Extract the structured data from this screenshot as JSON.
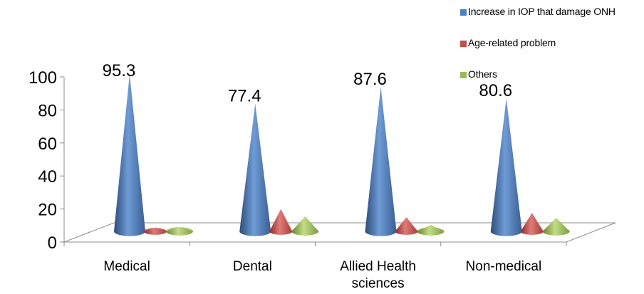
{
  "chart_data": {
    "type": "bar",
    "categories": [
      "Medical",
      "Dental",
      "Allied Health sciences",
      "Non-medical"
    ],
    "category_lines": [
      [
        "Medical"
      ],
      [
        "Dental"
      ],
      [
        "Allied Health",
        "sciences"
      ],
      [
        "Non-medical"
      ]
    ],
    "series": [
      {
        "name": "Increase in IOP that damage ONH",
        "values": [
          95.3,
          77.4,
          87.6,
          80.6
        ],
        "color": "#4F81BD"
      },
      {
        "name": "Age-related problem",
        "values": [
          2.3,
          13.5,
          8.5,
          11.2
        ],
        "color": "#C0504D"
      },
      {
        "name": "Others",
        "values": [
          2.4,
          9.1,
          3.9,
          8.2
        ],
        "color": "#9BBB59"
      }
    ],
    "data_labels": [
      "95.3",
      "77.4",
      "87.6",
      "80.6"
    ],
    "ylim": [
      0,
      100
    ],
    "yticks": [
      0,
      20,
      40,
      60,
      80,
      100
    ],
    "legend_position": "top-right",
    "grid": false
  }
}
